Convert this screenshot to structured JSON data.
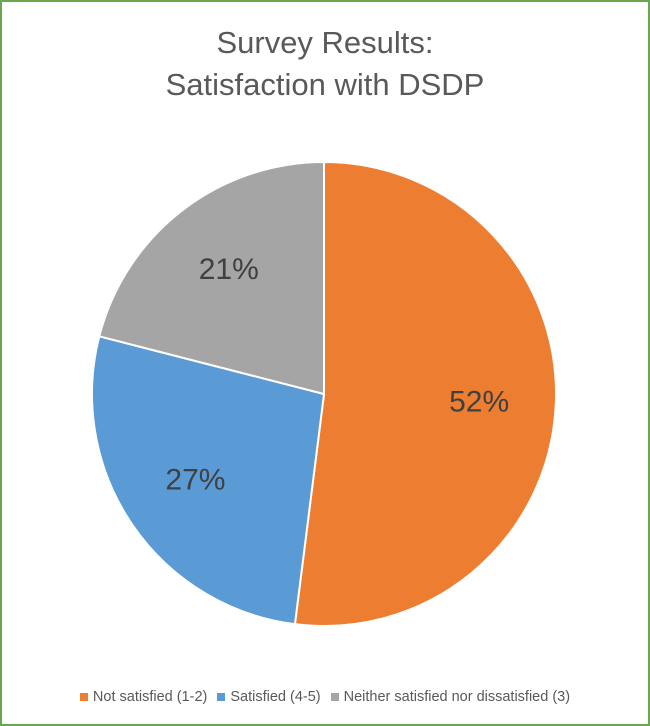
{
  "chart_data": {
    "type": "pie",
    "title_line1": "Survey Results:",
    "title_line2": "Satisfaction with DSDP",
    "slices": [
      {
        "label": "Not satisfied (1-2)",
        "value": 52,
        "display": "52%",
        "color": "#ed7d31"
      },
      {
        "label": "Satisfied (4-5)",
        "value": 27,
        "display": "27%",
        "color": "#5b9bd5"
      },
      {
        "label": "Neither satisfied nor dissatisfied (3)",
        "value": 21,
        "display": "21%",
        "color": "#a5a5a5"
      }
    ],
    "start_angle_deg": 0,
    "direction": "clockwise",
    "legend_position": "bottom"
  }
}
